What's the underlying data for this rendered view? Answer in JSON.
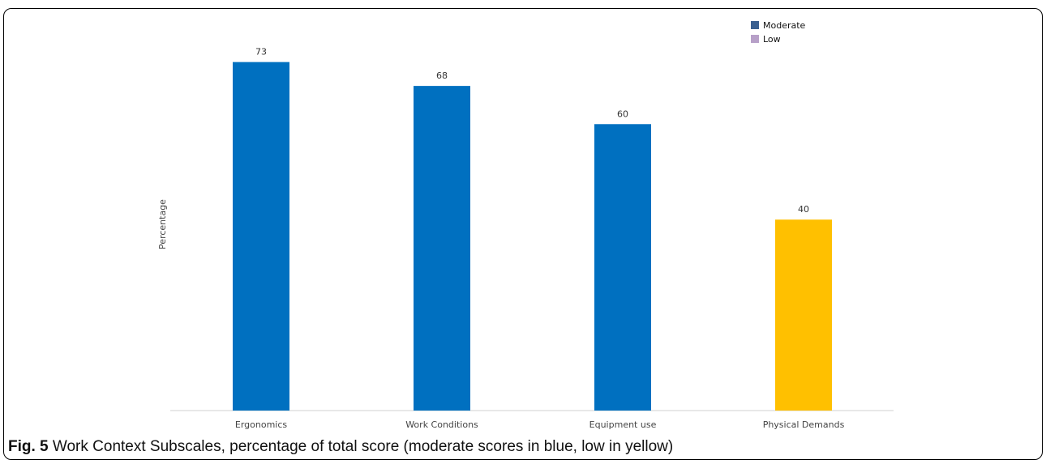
{
  "chart_data": {
    "type": "bar",
    "categories": [
      "Ergonomics",
      "Work Conditions",
      "Equipment use",
      "Physical Demands"
    ],
    "values": [
      73,
      68,
      60,
      40
    ],
    "levels": [
      "Moderate",
      "Moderate",
      "Moderate",
      "Low"
    ],
    "bar_colors": [
      "#0070c0",
      "#0070c0",
      "#0070c0",
      "#ffc000"
    ],
    "ylabel": "Percentage",
    "xlabel": "",
    "ylim": [
      0,
      86
    ],
    "grid": false,
    "data_labels": true,
    "legend": {
      "position": "top-right",
      "entries": [
        {
          "name": "Moderate",
          "color": "#3a5f8f"
        },
        {
          "name": "Low",
          "color": "#b7a0c8"
        }
      ]
    }
  },
  "caption": {
    "label": "Fig. 5",
    "text": " Work Context Subscales, percentage of total score (moderate scores in blue, low in yellow)"
  }
}
